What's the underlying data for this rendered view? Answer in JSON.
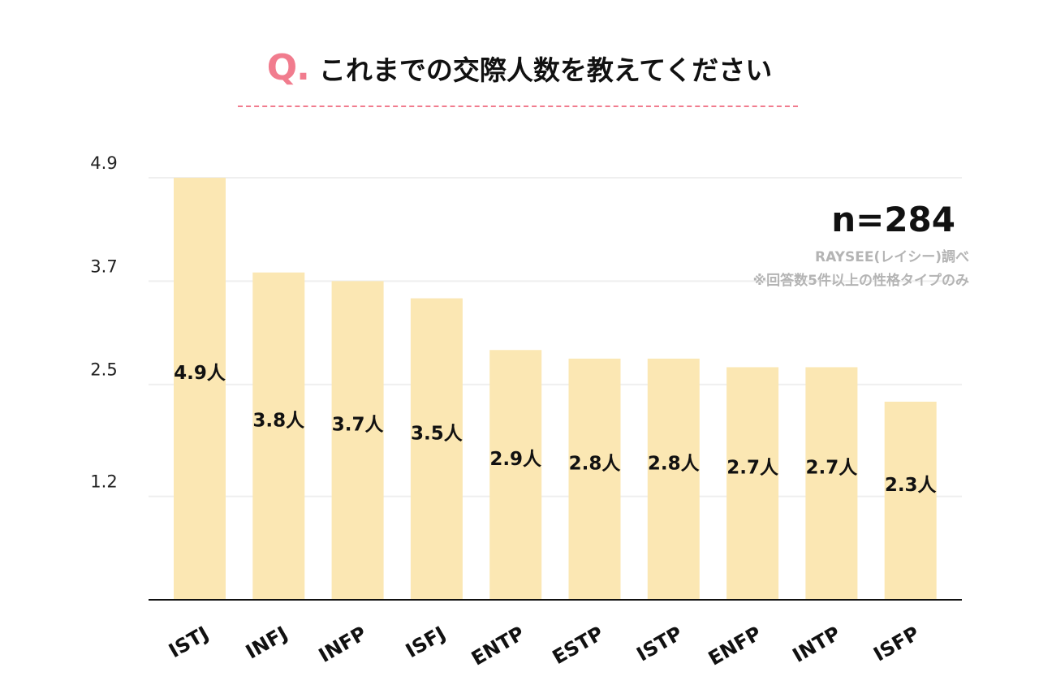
{
  "header": {
    "q_mark": "Q.",
    "title": "これまでの交際人数を教えてください"
  },
  "annotations": {
    "sample_size": "n=284",
    "source": "RAYSEE(レイシー)調べ",
    "note": "※回答数5件以上の性格タイプのみ"
  },
  "colors": {
    "bar": "#fbe7b3",
    "accent": "#f17c8e",
    "grid": "#efefef",
    "axis": "#111111"
  },
  "chart_data": {
    "type": "bar",
    "title": "これまでの交際人数を教えてください",
    "categories": [
      "ISTJ",
      "INFJ",
      "INFP",
      "ISFJ",
      "ENTP",
      "ESTP",
      "ISTP",
      "ENFP",
      "INTP",
      "ISFP"
    ],
    "values": [
      4.9,
      3.8,
      3.7,
      3.5,
      2.9,
      2.8,
      2.8,
      2.7,
      2.7,
      2.3
    ],
    "data_labels": [
      "4.9人",
      "3.8人",
      "3.7人",
      "3.5人",
      "2.9人",
      "2.8人",
      "2.8人",
      "2.7人",
      "2.7人",
      "2.3人"
    ],
    "yticks": [
      "1.2",
      "2.5",
      "3.7",
      "4.9"
    ],
    "ylim": [
      0,
      4.9
    ],
    "grid": true,
    "xlabel": "",
    "ylabel": ""
  }
}
